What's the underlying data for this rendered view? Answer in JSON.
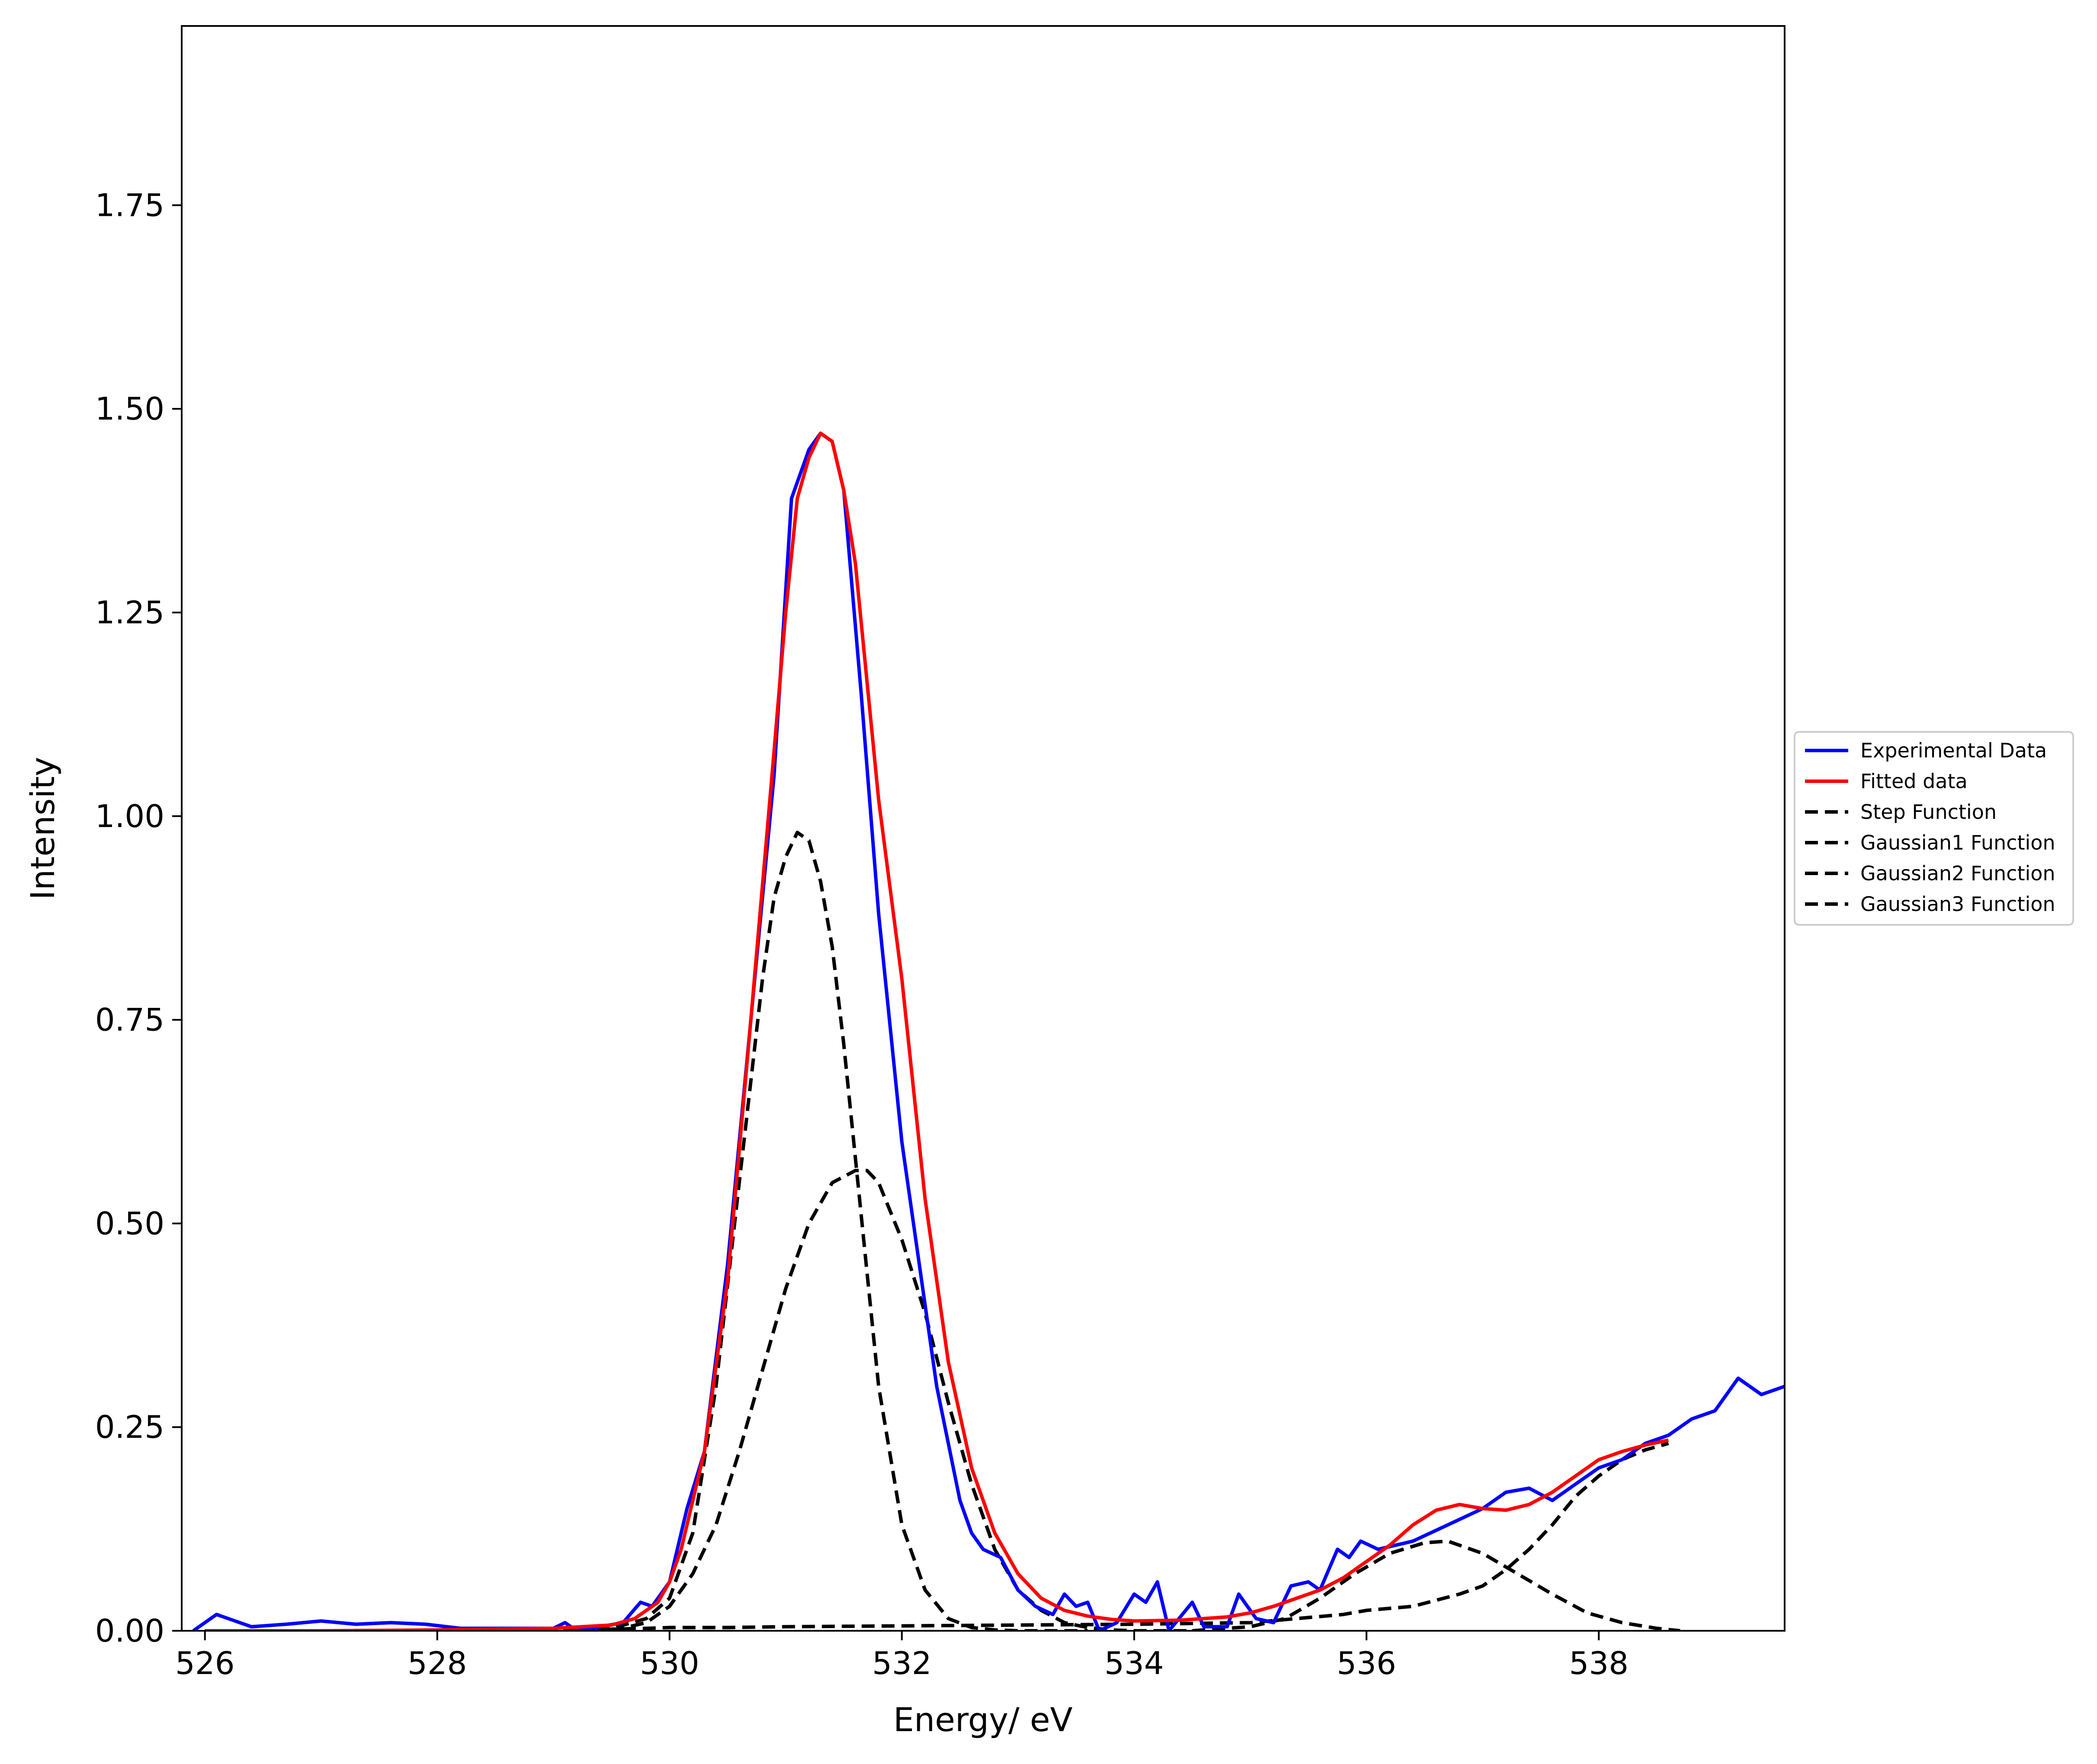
{
  "chart_data": {
    "type": "line",
    "xlabel": "Energy/ eV",
    "ylabel": "Intensity",
    "xlim": [
      525.8,
      539.6
    ],
    "ylim": [
      0.0,
      1.97
    ],
    "x_ticks": [
      526,
      528,
      530,
      532,
      534,
      536,
      538
    ],
    "y_ticks": [
      0.0,
      0.25,
      0.5,
      0.75,
      1.0,
      1.25,
      1.5,
      1.75
    ],
    "x_tick_labels": [
      "526",
      "528",
      "530",
      "532",
      "534",
      "536",
      "538"
    ],
    "y_tick_labels": [
      "0.00",
      "0.25",
      "0.50",
      "0.75",
      "1.00",
      "1.25",
      "1.50",
      "1.75"
    ],
    "grid": false,
    "legend_position": "right, outside plot",
    "series": [
      {
        "name": "Experimental Data",
        "color": "#0000ff",
        "style": "solid",
        "x": [
          525.9,
          526.1,
          526.4,
          526.7,
          527.0,
          527.3,
          527.6,
          527.9,
          528.2,
          528.5,
          528.8,
          529.0,
          529.1,
          529.2,
          529.4,
          529.6,
          529.75,
          529.85,
          530.0,
          530.15,
          530.3,
          530.5,
          530.7,
          530.9,
          531.05,
          531.2,
          531.3,
          531.4,
          531.5,
          531.65,
          531.8,
          532.0,
          532.15,
          532.3,
          532.5,
          532.6,
          532.7,
          532.85,
          533.0,
          533.15,
          533.3,
          533.4,
          533.5,
          533.6,
          533.7,
          533.85,
          534.0,
          534.1,
          534.2,
          534.3,
          534.5,
          534.6,
          534.8,
          534.9,
          535.05,
          535.2,
          535.35,
          535.5,
          535.6,
          535.75,
          535.85,
          535.95,
          536.1,
          536.4,
          536.7,
          537.0,
          537.2,
          537.4,
          537.6,
          537.8,
          538.0,
          538.2,
          538.4,
          538.6,
          538.8,
          539.0,
          539.2,
          539.4,
          539.6
        ],
        "values": [
          0.0,
          0.02,
          0.005,
          0.008,
          0.012,
          0.008,
          0.01,
          0.008,
          0.003,
          0.003,
          0.003,
          0.003,
          0.01,
          0.0,
          0.005,
          0.01,
          0.035,
          0.03,
          0.06,
          0.15,
          0.22,
          0.45,
          0.75,
          1.05,
          1.39,
          1.45,
          1.47,
          1.46,
          1.4,
          1.15,
          0.88,
          0.6,
          0.45,
          0.3,
          0.16,
          0.12,
          0.1,
          0.09,
          0.05,
          0.03,
          0.02,
          0.045,
          0.03,
          0.035,
          0.0,
          0.01,
          0.045,
          0.035,
          0.06,
          0.0,
          0.035,
          0.005,
          0.005,
          0.045,
          0.015,
          0.01,
          0.055,
          0.06,
          0.05,
          0.1,
          0.09,
          0.11,
          0.1,
          0.11,
          0.13,
          0.15,
          0.17,
          0.175,
          0.16,
          0.18,
          0.2,
          0.21,
          0.23,
          0.24,
          0.26,
          0.27,
          0.31,
          0.29,
          0.3
        ]
      },
      {
        "name": "Fitted data",
        "color": "#ff0000",
        "style": "solid",
        "x": [
          526.0,
          527.0,
          528.0,
          529.0,
          529.5,
          529.7,
          529.9,
          530.0,
          530.1,
          530.3,
          530.5,
          530.7,
          530.9,
          531.0,
          531.1,
          531.2,
          531.3,
          531.4,
          531.5,
          531.6,
          531.8,
          532.0,
          532.2,
          532.4,
          532.6,
          532.8,
          533.0,
          533.2,
          533.4,
          533.6,
          533.8,
          534.0,
          534.4,
          534.8,
          535.0,
          535.2,
          535.4,
          535.6,
          535.8,
          536.0,
          536.2,
          536.4,
          536.6,
          536.8,
          537.0,
          537.2,
          537.4,
          537.6,
          537.8,
          538.0,
          538.2,
          538.4,
          538.6
        ],
        "values": [
          0.0,
          0.0,
          0.001,
          0.003,
          0.007,
          0.015,
          0.035,
          0.06,
          0.1,
          0.22,
          0.43,
          0.75,
          1.08,
          1.25,
          1.39,
          1.44,
          1.47,
          1.46,
          1.4,
          1.31,
          1.02,
          0.8,
          0.53,
          0.33,
          0.2,
          0.12,
          0.07,
          0.04,
          0.025,
          0.018,
          0.014,
          0.012,
          0.013,
          0.017,
          0.022,
          0.03,
          0.04,
          0.05,
          0.065,
          0.085,
          0.105,
          0.13,
          0.148,
          0.155,
          0.15,
          0.148,
          0.155,
          0.17,
          0.19,
          0.21,
          0.22,
          0.228,
          0.234
        ]
      },
      {
        "name": "Step Function",
        "color": "#000000",
        "style": "dashed",
        "x": [
          526.0,
          527.0,
          528.0,
          529.0,
          529.5,
          529.8,
          530.0,
          530.5,
          531.0,
          532.0,
          533.0,
          534.0,
          535.0,
          535.4,
          535.8,
          536.0,
          536.4,
          536.8,
          537.0,
          537.2,
          537.4,
          537.6,
          537.8,
          538.0,
          538.2,
          538.4,
          538.6
        ],
        "values": [
          0.0,
          0.0,
          0.0,
          0.001,
          0.002,
          0.003,
          0.004,
          0.004,
          0.005,
          0.006,
          0.007,
          0.008,
          0.01,
          0.015,
          0.02,
          0.025,
          0.03,
          0.045,
          0.055,
          0.075,
          0.1,
          0.13,
          0.165,
          0.19,
          0.21,
          0.222,
          0.23
        ]
      },
      {
        "name": "Gaussian1 Function",
        "color": "#000000",
        "style": "dashed",
        "x": [
          529.2,
          529.5,
          529.8,
          530.0,
          530.2,
          530.4,
          530.6,
          530.8,
          530.9,
          531.0,
          531.1,
          531.2,
          531.3,
          531.4,
          531.5,
          531.6,
          531.7,
          531.8,
          532.0,
          532.2,
          532.4,
          532.6,
          532.8,
          533.0,
          533.3,
          533.6
        ],
        "values": [
          0.0,
          0.003,
          0.015,
          0.04,
          0.12,
          0.3,
          0.55,
          0.8,
          0.9,
          0.95,
          0.98,
          0.97,
          0.92,
          0.84,
          0.72,
          0.58,
          0.44,
          0.3,
          0.13,
          0.05,
          0.015,
          0.004,
          0.001,
          0.0,
          0.0,
          0.0
        ]
      },
      {
        "name": "Gaussian2 Function",
        "color": "#000000",
        "style": "dashed",
        "x": [
          529.5,
          529.8,
          530.0,
          530.2,
          530.4,
          530.6,
          530.8,
          531.0,
          531.2,
          531.4,
          531.6,
          531.7,
          531.8,
          532.0,
          532.2,
          532.4,
          532.6,
          532.8,
          533.0,
          533.2,
          533.4,
          533.6,
          533.8,
          534.0,
          534.5
        ],
        "values": [
          0.0,
          0.01,
          0.03,
          0.07,
          0.13,
          0.22,
          0.32,
          0.42,
          0.5,
          0.55,
          0.565,
          0.565,
          0.55,
          0.48,
          0.39,
          0.28,
          0.18,
          0.1,
          0.05,
          0.025,
          0.01,
          0.004,
          0.001,
          0.0,
          0.0
        ]
      },
      {
        "name": "Gaussian3 Function",
        "color": "#000000",
        "style": "dashed",
        "x": [
          534.5,
          535.0,
          535.3,
          535.6,
          535.9,
          536.2,
          536.5,
          536.7,
          537.0,
          537.3,
          537.6,
          537.9,
          538.2,
          538.5,
          538.7
        ],
        "values": [
          0.0,
          0.005,
          0.015,
          0.04,
          0.07,
          0.095,
          0.108,
          0.11,
          0.095,
          0.07,
          0.045,
          0.022,
          0.01,
          0.003,
          0.0
        ]
      }
    ]
  }
}
